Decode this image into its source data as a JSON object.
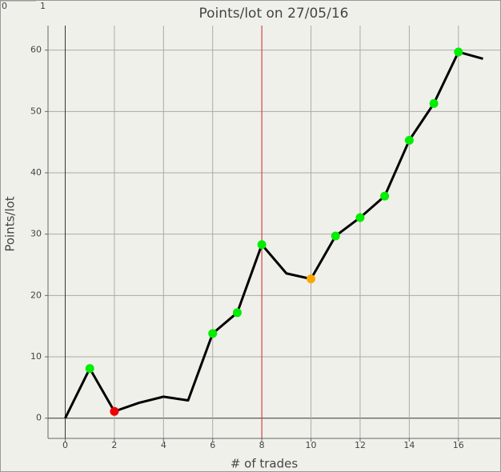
{
  "top_ruler": [
    "0",
    "1"
  ],
  "chart_data": {
    "type": "line",
    "title": "Points/lot on 27/05/16",
    "xlabel": "# of trades",
    "ylabel": "Points/lot",
    "x": [
      0,
      1,
      2,
      3,
      4,
      5,
      6,
      7,
      8,
      9,
      10,
      11,
      12,
      13,
      14,
      15,
      16,
      17
    ],
    "series": [
      {
        "color": "#000000",
        "values": [
          0,
          8.1,
          1.1,
          2.5,
          3.5,
          2.9,
          13.8,
          17.2,
          28.3,
          23.6,
          22.7,
          29.7,
          32.7,
          36.2,
          45.3,
          51.3,
          59.7,
          58.6
        ],
        "marker_colors": [
          null,
          "#00ee00",
          "#ee0000",
          null,
          null,
          null,
          "#00ee00",
          "#00ee00",
          "#00ee00",
          null,
          "#ffa500",
          "#00ee00",
          "#00ee00",
          "#00ee00",
          "#00ee00",
          "#00ee00",
          "#00ee00",
          null
        ]
      }
    ],
    "xlim": [
      -0.7,
      17.7
    ],
    "ylim": [
      -3.3,
      64
    ],
    "xticks": [
      0,
      2,
      4,
      6,
      8,
      10,
      12,
      14,
      16
    ],
    "yticks": [
      0,
      10,
      20,
      30,
      40,
      50,
      60
    ],
    "grid": true,
    "vline": {
      "x": 8,
      "color": "#e03030"
    }
  }
}
